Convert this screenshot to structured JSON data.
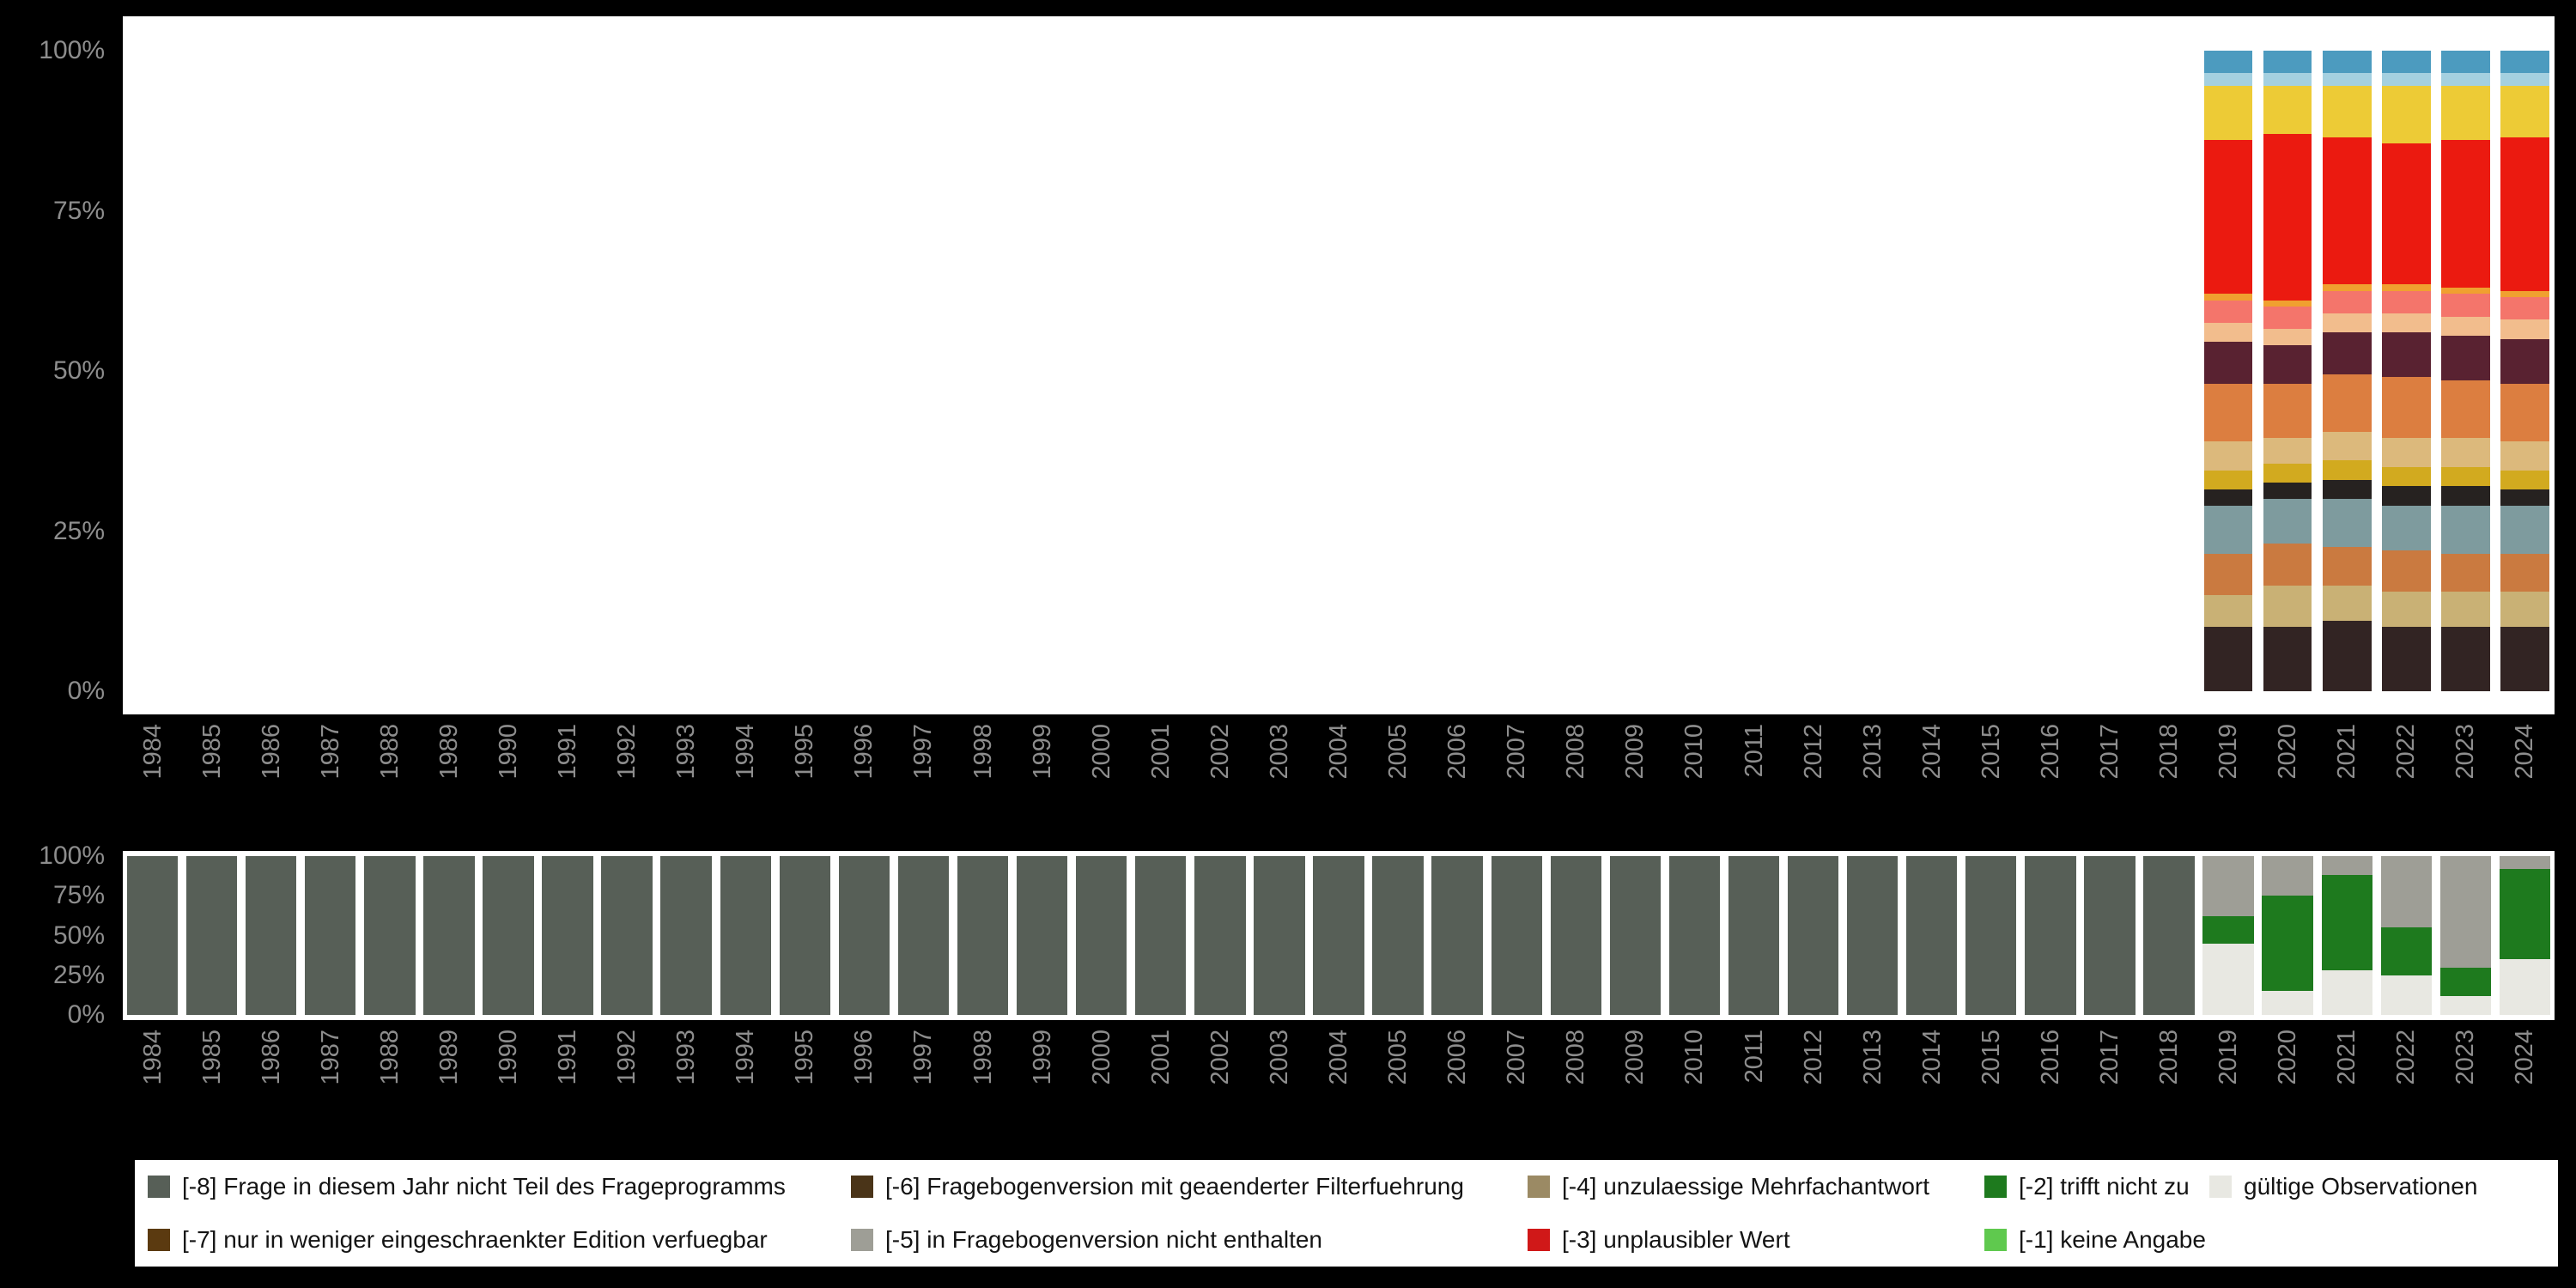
{
  "figure": {
    "background": "#000000",
    "plot_background": "#ffffff",
    "tick_color": "#8d8d8d"
  },
  "axes": {
    "y_ticks": [
      "100%",
      "75%",
      "50%",
      "25%",
      "0%"
    ],
    "years": [
      "1984",
      "1985",
      "1986",
      "1987",
      "1988",
      "1989",
      "1990",
      "1991",
      "1992",
      "1993",
      "1994",
      "1995",
      "1996",
      "1997",
      "1998",
      "1999",
      "2000",
      "2001",
      "2002",
      "2003",
      "2004",
      "2005",
      "2006",
      "2007",
      "2008",
      "2009",
      "2010",
      "2011",
      "2012",
      "2013",
      "2014",
      "2015",
      "2016",
      "2017",
      "2018",
      "2019",
      "2020",
      "2021",
      "2022",
      "2023",
      "2024"
    ]
  },
  "chart_data": [
    {
      "id": "answer-category-distribution",
      "type": "bar",
      "stacked": true,
      "title": "",
      "xlabel": "",
      "ylabel": "",
      "ylim": [
        0,
        100
      ],
      "y_tick_labels": [
        "0%",
        "25%",
        "50%",
        "75%",
        "100%"
      ],
      "grid": false,
      "legend_position": "none",
      "bar_width_fraction": 0.82,
      "note": "Bars only for 2019-2024; stack order is top-to-bottom; values are percent.",
      "series": [
        {
          "name": "steel-blue",
          "color": "#4c9bbf",
          "values": {
            "2019": 3.5,
            "2020": 3.5,
            "2021": 3.5,
            "2022": 3.5,
            "2023": 3.5,
            "2024": 3.5
          }
        },
        {
          "name": "light-blue",
          "color": "#a4d0e0",
          "values": {
            "2019": 2,
            "2020": 2,
            "2021": 2,
            "2022": 2,
            "2023": 2,
            "2024": 2
          }
        },
        {
          "name": "gold",
          "color": "#edcb36",
          "values": {
            "2019": 8.5,
            "2020": 7.5,
            "2021": 8,
            "2022": 9,
            "2023": 8.5,
            "2024": 8
          }
        },
        {
          "name": "red",
          "color": "#eb1a10",
          "values": {
            "2019": 24,
            "2020": 26,
            "2021": 23,
            "2022": 22,
            "2023": 23,
            "2024": 24
          }
        },
        {
          "name": "amber",
          "color": "#f0a030",
          "values": {
            "2019": 1,
            "2020": 1,
            "2021": 1,
            "2022": 1,
            "2023": 1,
            "2024": 1
          }
        },
        {
          "name": "salmon",
          "color": "#f4756b",
          "values": {
            "2019": 3.5,
            "2020": 3.5,
            "2021": 3.5,
            "2022": 3.5,
            "2023": 3.5,
            "2024": 3.5
          }
        },
        {
          "name": "peach",
          "color": "#f2bd8d",
          "values": {
            "2019": 3,
            "2020": 2.5,
            "2021": 3,
            "2022": 3,
            "2023": 3,
            "2024": 3
          }
        },
        {
          "name": "dark-maroon",
          "color": "#592231",
          "values": {
            "2019": 6.5,
            "2020": 6,
            "2021": 6.5,
            "2022": 7,
            "2023": 7,
            "2024": 7
          }
        },
        {
          "name": "orange",
          "color": "#dc7e40",
          "values": {
            "2019": 9,
            "2020": 8.5,
            "2021": 9,
            "2022": 9.5,
            "2023": 9,
            "2024": 9
          }
        },
        {
          "name": "tan",
          "color": "#dcb97c",
          "values": {
            "2019": 4.5,
            "2020": 4,
            "2021": 4.5,
            "2022": 4.5,
            "2023": 4.5,
            "2024": 4.5
          }
        },
        {
          "name": "dark-gold",
          "color": "#d2aa1f",
          "values": {
            "2019": 3,
            "2020": 3,
            "2021": 3,
            "2022": 3,
            "2023": 3,
            "2024": 3
          }
        },
        {
          "name": "black",
          "color": "#262220",
          "values": {
            "2019": 2.5,
            "2020": 2.5,
            "2021": 3,
            "2022": 3,
            "2023": 3,
            "2024": 2.5
          }
        },
        {
          "name": "slate-gray",
          "color": "#7e9b9e",
          "values": {
            "2019": 7.5,
            "2020": 7,
            "2021": 7.5,
            "2022": 7,
            "2023": 7.5,
            "2024": 7.5
          }
        },
        {
          "name": "burnt-orange",
          "color": "#ca7a40",
          "values": {
            "2019": 6.5,
            "2020": 6.5,
            "2021": 6,
            "2022": 6.5,
            "2023": 6,
            "2024": 6
          }
        },
        {
          "name": "khaki",
          "color": "#c9b175",
          "values": {
            "2019": 5,
            "2020": 6.5,
            "2021": 5.5,
            "2022": 5.5,
            "2023": 5.5,
            "2024": 5.5
          }
        },
        {
          "name": "dark-brown",
          "color": "#322423",
          "values": {
            "2019": 10,
            "2020": 10,
            "2021": 11,
            "2022": 10,
            "2023": 10,
            "2024": 10
          }
        }
      ]
    },
    {
      "id": "missing-codes-distribution",
      "type": "bar",
      "stacked": true,
      "title": "",
      "xlabel": "",
      "ylabel": "",
      "ylim": [
        0,
        100
      ],
      "y_tick_labels": [
        "0%",
        "25%",
        "50%",
        "75%",
        "100%"
      ],
      "grid": false,
      "legend_position": "bottom",
      "bar_width_fraction": 0.86,
      "note": "Stack order is top-to-bottom; values are percent.",
      "series": [
        {
          "name": "[-8] Frage in diesem Jahr nicht Teil des Frageprogramms",
          "color": "#575f57",
          "value_ranges": [
            {
              "from": 1984,
              "to": 2018,
              "value": 100
            }
          ],
          "values": {}
        },
        {
          "name": "[-5] in Fragebogenversion nicht enthalten",
          "color": "#9e9e96",
          "values": {
            "2019": 38,
            "2020": 25,
            "2021": 12,
            "2022": 45,
            "2023": 70,
            "2024": 8
          }
        },
        {
          "name": "[-2] trifft nicht zu",
          "color": "#1e7a1e",
          "values": {
            "2019": 17,
            "2020": 60,
            "2021": 60,
            "2022": 30,
            "2023": 18,
            "2024": 57
          }
        },
        {
          "name": "gültige Observationen",
          "color": "#e8e8e2",
          "values": {
            "2019": 45,
            "2020": 15,
            "2021": 28,
            "2022": 25,
            "2023": 12,
            "2024": 35
          }
        }
      ]
    }
  ],
  "legend": {
    "items": [
      {
        "label": "[-8] Frage in diesem Jahr nicht Teil des Frageprogramms",
        "color": "#575f57"
      },
      {
        "label": "[-7] nur in weniger eingeschraenkter Edition verfuegbar",
        "color": "#5b3a10"
      },
      {
        "label": "[-6] Fragebogenversion mit geaenderter Filterfuehrung",
        "color": "#4a3418"
      },
      {
        "label": "[-5] in Fragebogenversion nicht enthalten",
        "color": "#9e9e96"
      },
      {
        "label": "[-4] unzulaessige Mehrfachantwort",
        "color": "#9b8a64"
      },
      {
        "label": "[-3] unplausibler Wert",
        "color": "#d01818"
      },
      {
        "label": "[-2] trifft nicht zu",
        "color": "#1e7a1e"
      },
      {
        "label": "[-1] keine Angabe",
        "color": "#5fc94e"
      },
      {
        "label": "gültige Observationen",
        "color": "#e8e8e2"
      }
    ]
  }
}
